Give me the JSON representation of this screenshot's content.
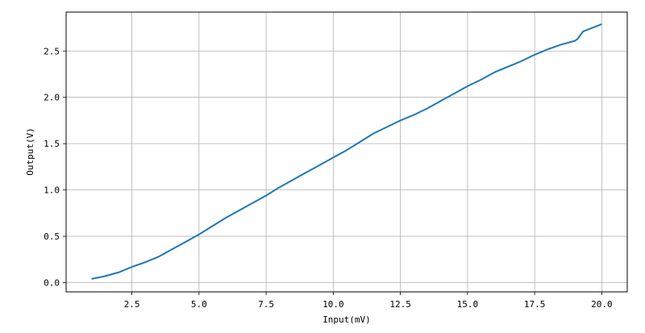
{
  "chart_data": {
    "type": "line",
    "title": "",
    "xlabel": "Input(mV)",
    "ylabel": "Output(V)",
    "xlim": [
      0.05,
      20.95
    ],
    "ylim": [
      -0.1,
      2.92
    ],
    "grid": true,
    "x_ticks": [
      2.5,
      5.0,
      7.5,
      10.0,
      12.5,
      15.0,
      17.5,
      20.0
    ],
    "x_tick_labels": [
      "2.5",
      "5.0",
      "7.5",
      "10.0",
      "12.5",
      "15.0",
      "17.5",
      "20.0"
    ],
    "y_ticks": [
      0.0,
      0.5,
      1.0,
      1.5,
      2.0,
      2.5
    ],
    "y_tick_labels": [
      "0.0",
      "0.5",
      "1.0",
      "1.5",
      "2.0",
      "2.5"
    ],
    "line_color": "#1f77b4",
    "series": [
      {
        "x": [
          1,
          1.5,
          2,
          2.5,
          3,
          3.5,
          4,
          4.5,
          5,
          5.5,
          6,
          6.5,
          7,
          7.5,
          8,
          8.5,
          9,
          9.5,
          10,
          10.5,
          11,
          11.5,
          12,
          12.5,
          13,
          13.5,
          14,
          14.5,
          15,
          15.5,
          16,
          16.5,
          17,
          17.5,
          18,
          18.5,
          19,
          19.1,
          19.3,
          20
        ],
        "y": [
          0.04,
          0.07,
          0.11,
          0.17,
          0.22,
          0.28,
          0.36,
          0.44,
          0.52,
          0.61,
          0.7,
          0.78,
          0.86,
          0.94,
          1.03,
          1.11,
          1.19,
          1.27,
          1.35,
          1.43,
          1.52,
          1.61,
          1.68,
          1.75,
          1.81,
          1.88,
          1.96,
          2.04,
          2.12,
          2.19,
          2.27,
          2.33,
          2.39,
          2.46,
          2.52,
          2.57,
          2.61,
          2.63,
          2.71,
          2.79
        ]
      }
    ]
  }
}
